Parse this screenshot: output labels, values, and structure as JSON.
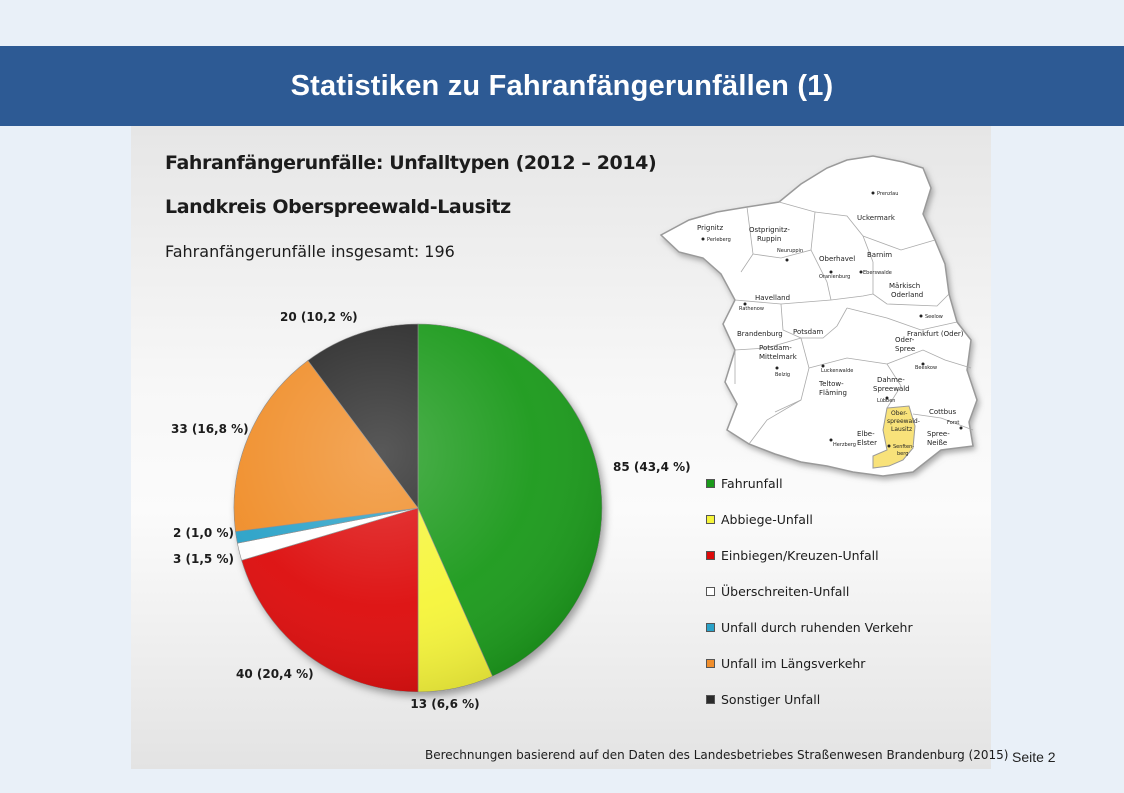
{
  "header": {
    "title": "Statistiken zu Fahranfängerunfällen (1)"
  },
  "slide": {
    "heading1": "Fahranfängerunfälle: Unfalltypen (2012 – 2014)",
    "heading2": "Landkreis Oberspreewald-Lausitz",
    "total_text": "Fahranfängerunfälle insgesamt: 196",
    "source": "Berechnungen basierend auf den Daten des Landesbetriebes Straßenwesen Brandenburg (2015)"
  },
  "footer": {
    "page": "Seite 2"
  },
  "chart_data": {
    "type": "pie",
    "total": 196,
    "slices": [
      {
        "label": "Fahrunfall",
        "value": 85,
        "percent": 43.4,
        "data_label": "85 (43,4 %)",
        "color": "#1a9a1a"
      },
      {
        "label": "Abbiege-Unfall",
        "value": 13,
        "percent": 6.6,
        "data_label": "13 (6,6 %)",
        "color": "#f6f53a"
      },
      {
        "label": "Einbiegen/Kreuzen-Unfall",
        "value": 40,
        "percent": 20.4,
        "data_label": "40 (20,4 %)",
        "color": "#dd0a0a"
      },
      {
        "label": "Überschreiten-Unfall",
        "value": 3,
        "percent": 1.5,
        "data_label": "3 (1,5 %)",
        "color": "#ffffff"
      },
      {
        "label": "Unfall durch ruhenden Verkehr",
        "value": 2,
        "percent": 1.0,
        "data_label": "2 (1,0 %)",
        "color": "#2aa2c8"
      },
      {
        "label": "Unfall im Längsverkehr",
        "value": 33,
        "percent": 16.8,
        "data_label": "33 (16,8 %)",
        "color": "#f08e2c"
      },
      {
        "label": "Sonstiger Unfall",
        "value": 20,
        "percent": 10.2,
        "data_label": "20 (10,2 %)",
        "color": "#2b2b2b"
      }
    ],
    "legend_position": "right"
  },
  "map": {
    "highlight_color": "#f8e27a",
    "regions": [
      "Prignitz",
      "Ostprignitz-Ruppin",
      "Uckermark",
      "Oberhavel",
      "Barnim",
      "Havelland",
      "Märkisch Oderland",
      "Brandenburg",
      "Potsdam",
      "Frankfurt (Oder)",
      "Potsdam-Mittelmark",
      "Oder-Spree",
      "Teltow-Fläming",
      "Dahme-Spreewald",
      "Ober-spreewald-Lausitz",
      "Cottbus",
      "Spree-Neiße",
      "Elbe-Elster"
    ],
    "towns": [
      "Prenzlau",
      "Perleberg",
      "Neuruppin",
      "Oranienburg",
      "Eberswalde",
      "Rathenow",
      "Seelow",
      "Beeskow",
      "Belzig",
      "Luckenwalde",
      "Lübben",
      "Forst",
      "Herzberg",
      "Senften-berg"
    ]
  }
}
